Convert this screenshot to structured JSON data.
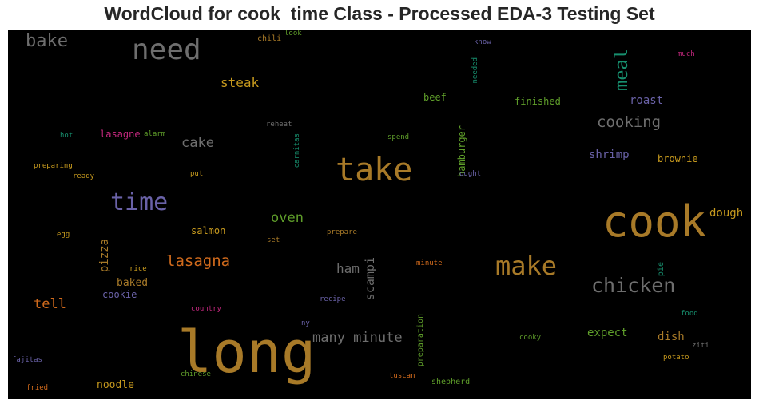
{
  "title": "WordCloud for cook_time Class - Processed EDA-3 Testing Set",
  "colors": {
    "gold": "#a87a28",
    "gray": "#6e6e6e",
    "purple": "#6a62a8",
    "orange": "#d06a1c",
    "green": "#5f9e2a",
    "teal": "#178f6e",
    "pink": "#c4287e",
    "yellow": "#c79a1e"
  },
  "words": [
    {
      "text": "long",
      "color": "#a87a28"
    },
    {
      "text": "cook",
      "color": "#a87a28"
    },
    {
      "text": "take",
      "color": "#a87a28"
    },
    {
      "text": "need",
      "color": "#6e6e6e"
    },
    {
      "text": "make",
      "color": "#a87a28"
    },
    {
      "text": "time",
      "color": "#6a62a8"
    },
    {
      "text": "chicken",
      "color": "#6e6e6e"
    },
    {
      "text": "many minute",
      "color": "#6e6e6e"
    },
    {
      "text": "cooking",
      "color": "#6e6e6e"
    },
    {
      "text": "lasagna",
      "color": "#d06a1c"
    },
    {
      "text": "meal",
      "color": "#178f6e"
    },
    {
      "text": "bake",
      "color": "#6e6e6e"
    },
    {
      "text": "cake",
      "color": "#6e6e6e"
    },
    {
      "text": "oven",
      "color": "#5f9e2a"
    },
    {
      "text": "steak",
      "color": "#c79a1e"
    },
    {
      "text": "tell",
      "color": "#d06a1c"
    },
    {
      "text": "ham",
      "color": "#6e6e6e"
    },
    {
      "text": "scampi",
      "color": "#6e6e6e"
    },
    {
      "text": "pizza",
      "color": "#a87a28"
    },
    {
      "text": "roast",
      "color": "#6a62a8"
    },
    {
      "text": "shrimp",
      "color": "#6a62a8"
    },
    {
      "text": "dish",
      "color": "#a87a28"
    },
    {
      "text": "dough",
      "color": "#c79a1e"
    },
    {
      "text": "expect",
      "color": "#5f9e2a"
    },
    {
      "text": "baked",
      "color": "#a87a28"
    },
    {
      "text": "noodle",
      "color": "#c79a1e"
    },
    {
      "text": "finished",
      "color": "#5f9e2a"
    },
    {
      "text": "brownie",
      "color": "#c79a1e"
    },
    {
      "text": "hamburger",
      "color": "#5f9e2a"
    },
    {
      "text": "salmon",
      "color": "#c79a1e"
    },
    {
      "text": "cookie",
      "color": "#6a62a8"
    },
    {
      "text": "beef",
      "color": "#5f9e2a"
    },
    {
      "text": "lasagne",
      "color": "#c4287e"
    },
    {
      "text": "pie",
      "color": "#178f6e"
    },
    {
      "text": "preparation",
      "color": "#5f9e2a"
    },
    {
      "text": "carnitas",
      "color": "#178f6e"
    },
    {
      "text": "needed",
      "color": "#178f6e"
    },
    {
      "text": "shepherd",
      "color": "#5f9e2a"
    },
    {
      "text": "chili",
      "color": "#a87a28"
    },
    {
      "text": "look",
      "color": "#5f9e2a"
    },
    {
      "text": "know",
      "color": "#6a62a8"
    },
    {
      "text": "much",
      "color": "#c4287e"
    },
    {
      "text": "reheat",
      "color": "#6e6e6e"
    },
    {
      "text": "hot",
      "color": "#178f6e"
    },
    {
      "text": "alarm",
      "color": "#5f9e2a"
    },
    {
      "text": "spend",
      "color": "#5f9e2a"
    },
    {
      "text": "preparing",
      "color": "#c79a1e"
    },
    {
      "text": "ready",
      "color": "#c79a1e"
    },
    {
      "text": "put",
      "color": "#c79a1e"
    },
    {
      "text": "ought",
      "color": "#6a62a8"
    },
    {
      "text": "egg",
      "color": "#c79a1e"
    },
    {
      "text": "set",
      "color": "#a87a28"
    },
    {
      "text": "prepare",
      "color": "#a87a28"
    },
    {
      "text": "rice",
      "color": "#c79a1e"
    },
    {
      "text": "minute",
      "color": "#d06a1c"
    },
    {
      "text": "country",
      "color": "#c4287e"
    },
    {
      "text": "recipe",
      "color": "#6a62a8"
    },
    {
      "text": "food",
      "color": "#178f6e"
    },
    {
      "text": "ny",
      "color": "#6a62a8"
    },
    {
      "text": "cooky",
      "color": "#5f9e2a"
    },
    {
      "text": "ziti",
      "color": "#6e6e6e"
    },
    {
      "text": "fajitas",
      "color": "#6a62a8"
    },
    {
      "text": "potato",
      "color": "#c79a1e"
    },
    {
      "text": "chinese",
      "color": "#5f9e2a"
    },
    {
      "text": "tuscan",
      "color": "#d06a1c"
    },
    {
      "text": "fried",
      "color": "#d06a1c"
    }
  ]
}
